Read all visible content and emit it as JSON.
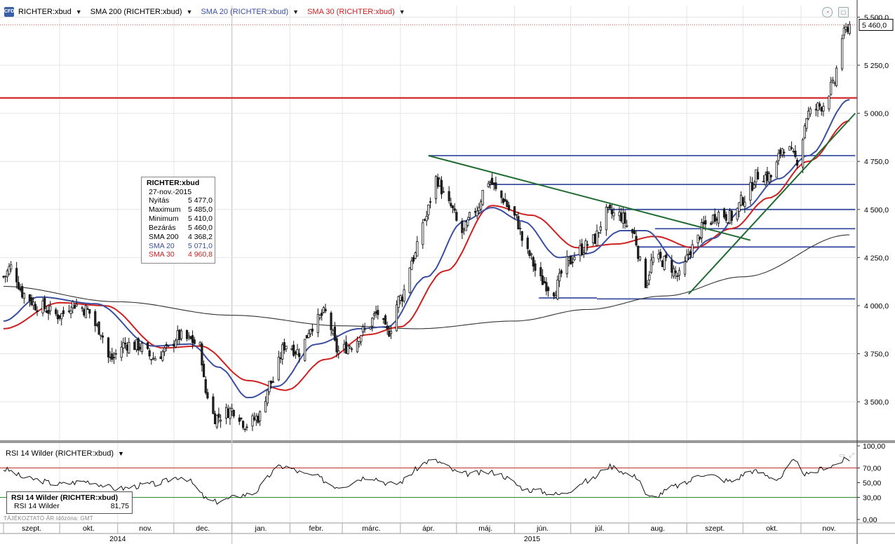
{
  "legend": {
    "symbol": "RICHTER:xbud",
    "sma200": "SMA 200 (RICHTER:xbud)",
    "sma20": "SMA 20 (RICHTER:xbud)",
    "sma30": "SMA 30 (RICHTER:xbud)",
    "colors": {
      "symbol": "#000000",
      "sma200": "#000000",
      "sma20": "#3b4fa0",
      "sma30": "#d01f1f"
    }
  },
  "infobox": {
    "title": "RICHTER:xbud",
    "date": "27-nov.-2015",
    "rows": [
      {
        "label": "Nyitás",
        "value": "5 477,0",
        "color": "#000000"
      },
      {
        "label": "Maximum",
        "value": "5 485,0",
        "color": "#000000"
      },
      {
        "label": "Minimum",
        "value": "5 410,0",
        "color": "#000000"
      },
      {
        "label": "Bezárás",
        "value": "5 460,0",
        "color": "#000000"
      },
      {
        "label": "SMA 200",
        "value": "4 368,2",
        "color": "#000000"
      },
      {
        "label": "SMA 20",
        "value": "5 071,0",
        "color": "#3b4fa0"
      },
      {
        "label": "SMA 30",
        "value": "4 960,8",
        "color": "#d01f1f"
      }
    ]
  },
  "rsi": {
    "title": "RSI 14 Wilder (RICHTER:xbud)",
    "box_title": "RSI 14 Wilder (RICHTER:xbud)",
    "box_label": "RSI 14 Wilder",
    "box_value": "81,75"
  },
  "footer_note": "TÁJÉKOZTATÓ ÁR   Időzóna: GMT",
  "chart_data": [
    {
      "type": "candlestick",
      "ylim": [
        3300,
        5560
      ],
      "yticks": [
        3500,
        3750,
        4000,
        4250,
        4500,
        4750,
        5000,
        5250,
        5500
      ],
      "ytick_labels": [
        "3 500,0",
        "3 750,0",
        "4 000,0",
        "4 250,0",
        "4 500,0",
        "4 750,0",
        "5 000,0",
        "5 250,0",
        "5 500,0"
      ],
      "last_price": 5460,
      "last_price_label": "5 460,0",
      "months": [
        "szept.",
        "okt.",
        "nov.",
        "dec.",
        "jan.",
        "febr.",
        "márc.",
        "ápr.",
        "máj.",
        "jún.",
        "júl.",
        "aug.",
        "szept.",
        "okt.",
        "nov."
      ],
      "years": [
        "2014",
        "2015"
      ],
      "x_start": "2014-09-01",
      "x_end": "2015-12-01",
      "close_anchors": [
        [
          "2014-09-01",
          4150
        ],
        [
          "2014-09-05",
          4200
        ],
        [
          "2014-09-12",
          4060
        ],
        [
          "2014-09-19",
          4000
        ],
        [
          "2014-10-01",
          3950
        ],
        [
          "2014-10-08",
          4010
        ],
        [
          "2014-10-15",
          3980
        ],
        [
          "2014-10-22",
          3880
        ],
        [
          "2014-10-28",
          3720
        ],
        [
          "2014-11-05",
          3800
        ],
        [
          "2014-11-12",
          3790
        ],
        [
          "2014-11-20",
          3730
        ],
        [
          "2014-11-28",
          3770
        ],
        [
          "2014-12-03",
          3840
        ],
        [
          "2014-12-10",
          3820
        ],
        [
          "2014-12-15",
          3780
        ],
        [
          "2014-12-18",
          3550
        ],
        [
          "2014-12-23",
          3420
        ],
        [
          "2015-01-02",
          3460
        ],
        [
          "2015-01-09",
          3380
        ],
        [
          "2015-01-15",
          3420
        ],
        [
          "2015-01-22",
          3600
        ],
        [
          "2015-01-30",
          3800
        ],
        [
          "2015-02-06",
          3760
        ],
        [
          "2015-02-13",
          3900
        ],
        [
          "2015-02-20",
          3960
        ],
        [
          "2015-02-27",
          3760
        ],
        [
          "2015-03-06",
          3800
        ],
        [
          "2015-03-13",
          3870
        ],
        [
          "2015-03-20",
          3960
        ],
        [
          "2015-03-25",
          3860
        ],
        [
          "2015-04-01",
          4040
        ],
        [
          "2015-04-08",
          4250
        ],
        [
          "2015-04-14",
          4450
        ],
        [
          "2015-04-20",
          4660
        ],
        [
          "2015-04-27",
          4520
        ],
        [
          "2015-05-04",
          4380
        ],
        [
          "2015-05-11",
          4500
        ],
        [
          "2015-05-18",
          4650
        ],
        [
          "2015-05-25",
          4560
        ],
        [
          "2015-06-01",
          4460
        ],
        [
          "2015-06-08",
          4270
        ],
        [
          "2015-06-15",
          4130
        ],
        [
          "2015-06-22",
          4080
        ],
        [
          "2015-06-29",
          4220
        ],
        [
          "2015-07-06",
          4290
        ],
        [
          "2015-07-13",
          4340
        ],
        [
          "2015-07-20",
          4480
        ],
        [
          "2015-07-27",
          4470
        ],
        [
          "2015-08-03",
          4380
        ],
        [
          "2015-08-10",
          4120
        ],
        [
          "2015-08-14",
          4240
        ],
        [
          "2015-08-21",
          4230
        ],
        [
          "2015-08-28",
          4150
        ],
        [
          "2015-09-04",
          4300
        ],
        [
          "2015-09-11",
          4420
        ],
        [
          "2015-09-18",
          4480
        ],
        [
          "2015-09-25",
          4460
        ],
        [
          "2015-10-02",
          4560
        ],
        [
          "2015-10-09",
          4680
        ],
        [
          "2015-10-16",
          4670
        ],
        [
          "2015-10-23",
          4830
        ],
        [
          "2015-10-30",
          4760
        ],
        [
          "2015-11-05",
          5000
        ],
        [
          "2015-11-12",
          5040
        ],
        [
          "2015-11-18",
          5140
        ],
        [
          "2015-11-23",
          5400
        ],
        [
          "2015-11-27",
          5460
        ]
      ],
      "sma200_anchors": [
        [
          "2014-09-01",
          4100
        ],
        [
          "2014-11-01",
          4020
        ],
        [
          "2015-01-01",
          3950
        ],
        [
          "2015-03-01",
          3895
        ],
        [
          "2015-04-10",
          3880
        ],
        [
          "2015-06-01",
          3920
        ],
        [
          "2015-07-10",
          3980
        ],
        [
          "2015-08-20",
          4050
        ],
        [
          "2015-10-01",
          4150
        ],
        [
          "2015-11-27",
          4368
        ]
      ],
      "sma20_anchors": [
        [
          "2014-09-01",
          3920
        ],
        [
          "2014-09-20",
          4045
        ],
        [
          "2014-10-20",
          4010
        ],
        [
          "2014-11-20",
          3790
        ],
        [
          "2014-12-10",
          3800
        ],
        [
          "2014-12-25",
          3680
        ],
        [
          "2015-01-10",
          3520
        ],
        [
          "2015-01-25",
          3580
        ],
        [
          "2015-02-15",
          3800
        ],
        [
          "2015-03-10",
          3880
        ],
        [
          "2015-03-25",
          3890
        ],
        [
          "2015-04-15",
          4150
        ],
        [
          "2015-05-05",
          4440
        ],
        [
          "2015-05-20",
          4510
        ],
        [
          "2015-06-05",
          4440
        ],
        [
          "2015-06-25",
          4250
        ],
        [
          "2015-07-10",
          4270
        ],
        [
          "2015-07-28",
          4390
        ],
        [
          "2015-08-10",
          4390
        ],
        [
          "2015-08-28",
          4220
        ],
        [
          "2015-09-15",
          4350
        ],
        [
          "2015-10-01",
          4500
        ],
        [
          "2015-10-20",
          4660
        ],
        [
          "2015-11-05",
          4780
        ],
        [
          "2015-11-27",
          5071
        ]
      ],
      "sma30_anchors": [
        [
          "2014-09-01",
          3880
        ],
        [
          "2014-10-01",
          4015
        ],
        [
          "2014-10-25",
          4000
        ],
        [
          "2014-11-25",
          3780
        ],
        [
          "2014-12-15",
          3790
        ],
        [
          "2015-01-10",
          3610
        ],
        [
          "2015-01-30",
          3560
        ],
        [
          "2015-02-20",
          3720
        ],
        [
          "2015-03-15",
          3850
        ],
        [
          "2015-04-01",
          3890
        ],
        [
          "2015-04-25",
          4180
        ],
        [
          "2015-05-20",
          4520
        ],
        [
          "2015-06-10",
          4470
        ],
        [
          "2015-07-05",
          4300
        ],
        [
          "2015-07-25",
          4320
        ],
        [
          "2015-08-15",
          4360
        ],
        [
          "2015-09-05",
          4300
        ],
        [
          "2015-09-25",
          4400
        ],
        [
          "2015-10-15",
          4560
        ],
        [
          "2015-11-05",
          4750
        ],
        [
          "2015-11-27",
          4961
        ]
      ],
      "horizontal_line": 5080,
      "support_resistance": [
        {
          "from": "2015-04-16",
          "to": "2015-11-30",
          "y": 4780
        },
        {
          "from": "2015-05-18",
          "to": "2015-11-30",
          "y": 4630
        },
        {
          "from": "2015-07-20",
          "to": "2015-11-30",
          "y": 4500
        },
        {
          "from": "2015-08-15",
          "to": "2015-11-30",
          "y": 4400
        },
        {
          "from": "2015-08-06",
          "to": "2015-11-30",
          "y": 4305
        },
        {
          "from": "2015-06-14",
          "to": "2015-07-15",
          "y": 4040
        },
        {
          "from": "2015-07-15",
          "to": "2015-11-30",
          "y": 4035
        }
      ],
      "trendlines": [
        {
          "x1": "2015-04-16",
          "y1": 4780,
          "x2": "2015-10-05",
          "y2": 4340
        },
        {
          "x1": "2015-09-02",
          "y1": 4060,
          "x2": "2015-11-30",
          "y2": 5000
        }
      ]
    },
    {
      "type": "line",
      "series": [
        {
          "values_anchors": [
            [
              "2014-09-01",
              68
            ],
            [
              "2014-09-15",
              55
            ],
            [
              "2014-10-01",
              48
            ],
            [
              "2014-10-15",
              52
            ],
            [
              "2014-11-01",
              42
            ],
            [
              "2014-11-20",
              48
            ],
            [
              "2014-12-05",
              58
            ],
            [
              "2014-12-22",
              24
            ],
            [
              "2015-01-10",
              34
            ],
            [
              "2015-01-28",
              72
            ],
            [
              "2015-02-12",
              60
            ],
            [
              "2015-02-27",
              45
            ],
            [
              "2015-03-15",
              58
            ],
            [
              "2015-03-28",
              48
            ],
            [
              "2015-04-18",
              80
            ],
            [
              "2015-05-05",
              62
            ],
            [
              "2015-05-20",
              64
            ],
            [
              "2015-06-10",
              40
            ],
            [
              "2015-06-25",
              34
            ],
            [
              "2015-07-10",
              52
            ],
            [
              "2015-07-22",
              72
            ],
            [
              "2015-08-05",
              58
            ],
            [
              "2015-08-12",
              30
            ],
            [
              "2015-08-28",
              46
            ],
            [
              "2015-09-10",
              62
            ],
            [
              "2015-09-25",
              52
            ],
            [
              "2015-10-05",
              66
            ],
            [
              "2015-10-20",
              56
            ],
            [
              "2015-10-28",
              78
            ],
            [
              "2015-11-05",
              60
            ],
            [
              "2015-11-15",
              72
            ],
            [
              "2015-11-27",
              82
            ]
          ]
        }
      ],
      "ylim": [
        0,
        100
      ],
      "yticks": [
        0,
        30,
        50,
        70,
        100
      ],
      "ytick_labels": [
        "0,00",
        "30,00",
        "50,00",
        "70,00",
        "100,00"
      ],
      "levels": {
        "overbought": 70,
        "oversold": 30
      }
    }
  ]
}
